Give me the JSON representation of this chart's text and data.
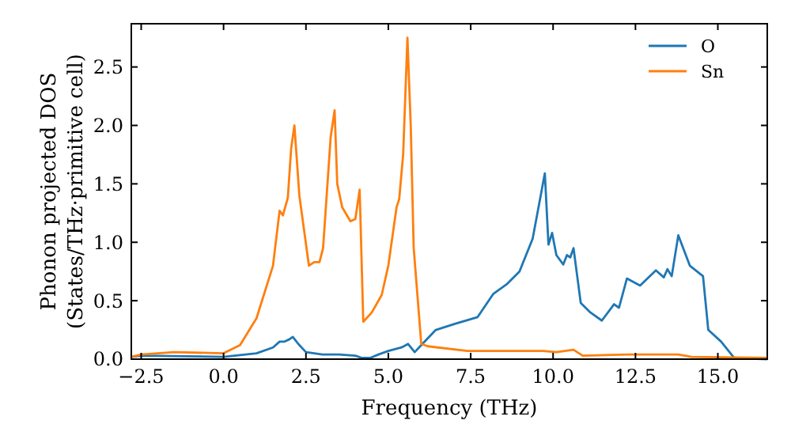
{
  "chart_data": {
    "type": "line",
    "xlabel": "Frequency (THz)",
    "ylabel": "Phonon projected DOS\n(States/THz·primitive cell)",
    "xlim": [
      -2.8,
      16.5
    ],
    "ylim": [
      0,
      2.87
    ],
    "xticks": [
      {
        "value": -2.5,
        "label": "−2.5"
      },
      {
        "value": 0,
        "label": "0.0"
      },
      {
        "value": 2.5,
        "label": "2.5"
      },
      {
        "value": 5,
        "label": "5.0"
      },
      {
        "value": 7.5,
        "label": "7.5"
      },
      {
        "value": 10,
        "label": "10.0"
      },
      {
        "value": 12.5,
        "label": "12.5"
      },
      {
        "value": 15,
        "label": "15.0"
      }
    ],
    "yticks": [
      {
        "value": 0,
        "label": "0.0"
      },
      {
        "value": 0.5,
        "label": "0.5"
      },
      {
        "value": 1,
        "label": "1.0"
      },
      {
        "value": 1.5,
        "label": "1.5"
      },
      {
        "value": 2,
        "label": "2.0"
      },
      {
        "value": 2.5,
        "label": "2.5"
      }
    ],
    "legend": "top right",
    "grid": false,
    "marker": "none",
    "line_style": "solid",
    "series": [
      {
        "name": "O",
        "color": "#1f77b4",
        "x": [
          -2.8,
          -2.5,
          0,
          1.0,
          1.5,
          1.7,
          1.85,
          2.0,
          2.1,
          2.3,
          2.5,
          3.0,
          3.5,
          4.0,
          4.2,
          4.45,
          4.7,
          5.0,
          5.4,
          5.6,
          5.8,
          6.0,
          6.44,
          7.0,
          7.71,
          8.19,
          8.59,
          8.98,
          9.38,
          9.75,
          9.86,
          9.97,
          10.1,
          10.31,
          10.42,
          10.52,
          10.62,
          10.84,
          11.13,
          11.48,
          11.85,
          12.0,
          12.24,
          12.64,
          13.12,
          13.36,
          13.47,
          13.6,
          13.8,
          14.15,
          14.55,
          14.71,
          15.1,
          15.5,
          16.5
        ],
        "values": [
          0.02,
          0.03,
          0.02,
          0.05,
          0.1,
          0.15,
          0.15,
          0.17,
          0.19,
          0.12,
          0.06,
          0.04,
          0.04,
          0.03,
          0.01,
          0.01,
          0.04,
          0.07,
          0.1,
          0.13,
          0.06,
          0.12,
          0.25,
          0.3,
          0.36,
          0.56,
          0.64,
          0.75,
          1.03,
          1.59,
          0.98,
          1.08,
          0.89,
          0.81,
          0.89,
          0.87,
          0.95,
          0.48,
          0.4,
          0.33,
          0.47,
          0.44,
          0.69,
          0.63,
          0.76,
          0.7,
          0.77,
          0.71,
          1.06,
          0.8,
          0.71,
          0.25,
          0.15,
          0.01,
          0
        ]
      },
      {
        "name": "Sn",
        "color": "#ff7f0e",
        "x": [
          -2.8,
          -2.5,
          -1.5,
          0,
          0.5,
          1.0,
          1.5,
          1.7,
          1.8,
          1.95,
          2.05,
          2.15,
          2.3,
          2.59,
          2.75,
          2.91,
          3.02,
          3.25,
          3.37,
          3.45,
          3.6,
          3.85,
          4.0,
          4.13,
          4.24,
          4.5,
          4.8,
          5.0,
          5.25,
          5.33,
          5.45,
          5.58,
          5.68,
          5.77,
          6.0,
          6.2,
          7.4,
          9.7,
          10.1,
          10.62,
          10.9,
          12.3,
          13.8,
          14.2,
          16.5
        ],
        "values": [
          0.02,
          0.04,
          0.06,
          0.05,
          0.12,
          0.35,
          0.8,
          1.27,
          1.23,
          1.38,
          1.8,
          2.0,
          1.4,
          0.8,
          0.83,
          0.83,
          0.95,
          1.9,
          2.13,
          1.5,
          1.3,
          1.18,
          1.2,
          1.45,
          0.32,
          0.4,
          0.55,
          0.8,
          1.3,
          1.37,
          1.75,
          2.75,
          2.0,
          0.95,
          0.13,
          0.11,
          0.07,
          0.07,
          0.06,
          0.08,
          0.03,
          0.04,
          0.04,
          0.02,
          0.01
        ]
      }
    ]
  }
}
